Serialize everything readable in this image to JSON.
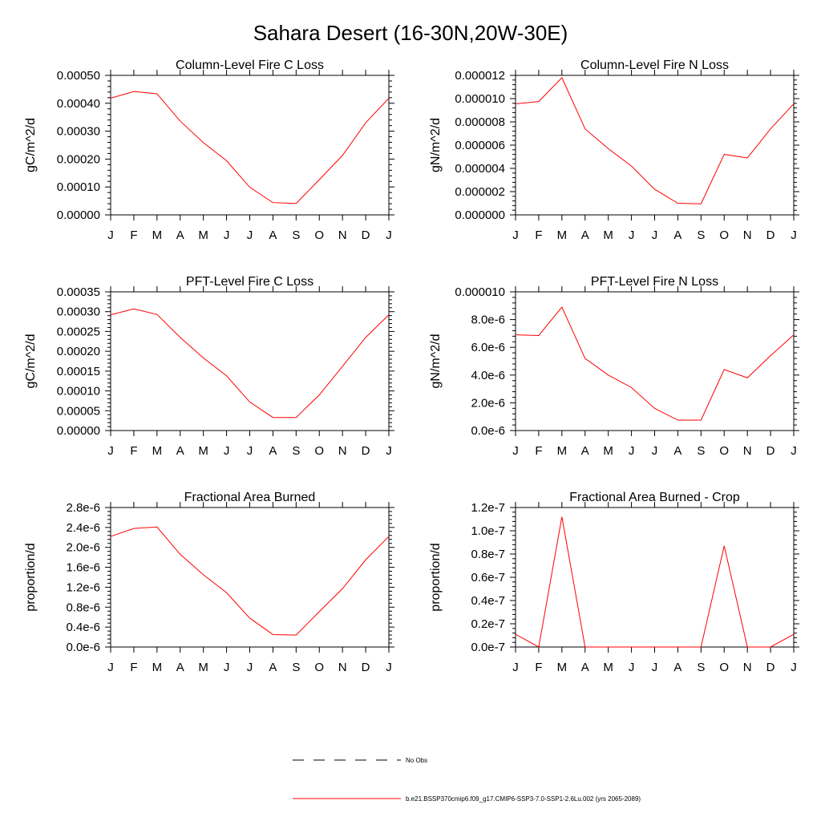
{
  "figure_title": "Sahara Desert (16-30N,20W-30E)",
  "legend": {
    "obs_label": "No Obs",
    "model_label": "b.e21.BSSP370cmip6.f09_g17.CMIP6-SSP3-7.0-SSP1-2.6Lu.002 (yrs 2065-2089)",
    "model_color": "#ff0000",
    "obs_color": "#000000"
  },
  "chart_data": [
    {
      "type": "line",
      "title": "Column-Level Fire C Loss",
      "xlabel": "",
      "ylabel": "gC/m^2/d",
      "categories": [
        "J",
        "F",
        "M",
        "A",
        "M",
        "J",
        "J",
        "A",
        "S",
        "O",
        "N",
        "D",
        "J"
      ],
      "ylim": [
        0,
        0.0005
      ],
      "yticks": [
        0,
        0.0001,
        0.0002,
        0.0003,
        0.0004,
        0.0005
      ],
      "ytick_labels": [
        "0.00000",
        "0.00010",
        "0.00020",
        "0.00030",
        "0.00040",
        "0.00050"
      ],
      "series": [
        {
          "values": [
            0.000418,
            0.000442,
            0.000434,
            0.000336,
            0.000259,
            0.000194,
            9.9e-05,
            4.4e-05,
            4.1e-05,
            0.000126,
            0.000213,
            0.00033,
            0.000418
          ]
        }
      ]
    },
    {
      "type": "line",
      "title": "Column-Level Fire N Loss",
      "xlabel": "",
      "ylabel": "gN/m^2/d",
      "categories": [
        "J",
        "F",
        "M",
        "A",
        "M",
        "J",
        "J",
        "A",
        "S",
        "O",
        "N",
        "D",
        "J"
      ],
      "ylim": [
        0,
        1.2e-05
      ],
      "yticks": [
        0,
        2e-06,
        4e-06,
        6e-06,
        8e-06,
        1e-05,
        1.2e-05
      ],
      "ytick_labels": [
        "0.000000",
        "0.000002",
        "0.000004",
        "0.000006",
        "0.000008",
        "0.000010",
        "0.000012"
      ],
      "series": [
        {
          "values": [
            9.55e-06,
            9.75e-06,
            1.18e-05,
            7.4e-06,
            5.7e-06,
            4.2e-06,
            2.2e-06,
            1e-06,
            9.5e-07,
            5.2e-06,
            4.9e-06,
            7.4e-06,
            9.55e-06
          ]
        }
      ]
    },
    {
      "type": "line",
      "title": "PFT-Level Fire C Loss",
      "xlabel": "",
      "ylabel": "gC/m^2/d",
      "categories": [
        "J",
        "F",
        "M",
        "A",
        "M",
        "J",
        "J",
        "A",
        "S",
        "O",
        "N",
        "D",
        "J"
      ],
      "ylim": [
        0,
        0.00035
      ],
      "yticks": [
        0,
        5e-05,
        0.0001,
        0.00015,
        0.0002,
        0.00025,
        0.0003,
        0.00035
      ],
      "ytick_labels": [
        "0.00000",
        "0.00005",
        "0.00010",
        "0.00015",
        "0.00020",
        "0.00025",
        "0.00030",
        "0.00035"
      ],
      "series": [
        {
          "values": [
            0.000292,
            0.000307,
            0.000293,
            0.000235,
            0.000183,
            0.000138,
            7.2e-05,
            3.3e-05,
            3.3e-05,
            9e-05,
            0.000162,
            0.000235,
            0.000292
          ]
        }
      ]
    },
    {
      "type": "line",
      "title": "PFT-Level Fire N Loss",
      "xlabel": "",
      "ylabel": "gN/m^2/d",
      "categories": [
        "J",
        "F",
        "M",
        "A",
        "M",
        "J",
        "J",
        "A",
        "S",
        "O",
        "N",
        "D",
        "J"
      ],
      "ylim": [
        0,
        1e-05
      ],
      "yticks": [
        0,
        2e-06,
        4e-06,
        6e-06,
        8e-06,
        1e-05
      ],
      "ytick_labels": [
        "0.0e-6",
        "2.0e-6",
        "4.0e-6",
        "6.0e-6",
        "8.0e-6",
        "0.000010"
      ],
      "series": [
        {
          "values": [
            6.9e-06,
            6.85e-06,
            8.9e-06,
            5.2e-06,
            4e-06,
            3.1e-06,
            1.6e-06,
            7.5e-07,
            7.5e-07,
            4.4e-06,
            3.8e-06,
            5.4e-06,
            6.9e-06
          ]
        }
      ]
    },
    {
      "type": "line",
      "title": "Fractional Area Burned",
      "xlabel": "",
      "ylabel": "proportion/d",
      "categories": [
        "J",
        "F",
        "M",
        "A",
        "M",
        "J",
        "J",
        "A",
        "S",
        "O",
        "N",
        "D",
        "J"
      ],
      "ylim": [
        0,
        2.8e-06
      ],
      "yticks": [
        0,
        4e-07,
        8e-07,
        1.2e-06,
        1.6e-06,
        2e-06,
        2.4e-06,
        2.8e-06
      ],
      "ytick_labels": [
        "0.0e-6",
        "0.4e-6",
        "0.8e-6",
        "1.2e-6",
        "1.6e-6",
        "2.0e-6",
        "2.4e-6",
        "2.8e-6"
      ],
      "series": [
        {
          "values": [
            2.22e-06,
            2.38e-06,
            2.41e-06,
            1.86e-06,
            1.45e-06,
            1.09e-06,
            5.8e-07,
            2.5e-07,
            2.4e-07,
            7.1e-07,
            1.17e-06,
            1.75e-06,
            2.22e-06
          ]
        }
      ]
    },
    {
      "type": "line",
      "title": "Fractional Area Burned - Crop",
      "xlabel": "",
      "ylabel": "proportion/d",
      "categories": [
        "J",
        "F",
        "M",
        "A",
        "M",
        "J",
        "J",
        "A",
        "S",
        "O",
        "N",
        "D",
        "J"
      ],
      "ylim": [
        0,
        1.2e-07
      ],
      "yticks": [
        0,
        2e-08,
        4e-08,
        6e-08,
        8e-08,
        1e-07,
        1.2e-07
      ],
      "ytick_labels": [
        "0.0e-7",
        "0.2e-7",
        "0.4e-7",
        "0.6e-7",
        "0.8e-7",
        "1.0e-7",
        "1.2e-7"
      ],
      "series": [
        {
          "values": [
            1.1e-08,
            0,
            1.12e-07,
            0,
            0,
            0,
            0,
            0,
            0,
            8.7e-08,
            0,
            0,
            1.1e-08
          ]
        }
      ]
    }
  ]
}
